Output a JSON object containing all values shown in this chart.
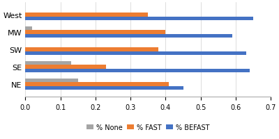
{
  "categories": [
    "West",
    "MW",
    "SW",
    "SE",
    "NE"
  ],
  "none_values": [
    0.0,
    0.02,
    0.0,
    0.13,
    0.15
  ],
  "fast_values": [
    0.35,
    0.4,
    0.38,
    0.23,
    0.41
  ],
  "befast_values": [
    0.65,
    0.59,
    0.63,
    0.64,
    0.45
  ],
  "color_none": "#a5a5a5",
  "color_fast": "#ed7d31",
  "color_befast": "#4472c4",
  "legend_labels": [
    "% None",
    "% FAST",
    "% BEFAST"
  ],
  "xlim": [
    0,
    0.7
  ],
  "xticks": [
    0,
    0.1,
    0.2,
    0.3,
    0.4,
    0.5,
    0.6,
    0.7
  ],
  "bar_height": 0.22,
  "background_color": "#ffffff"
}
